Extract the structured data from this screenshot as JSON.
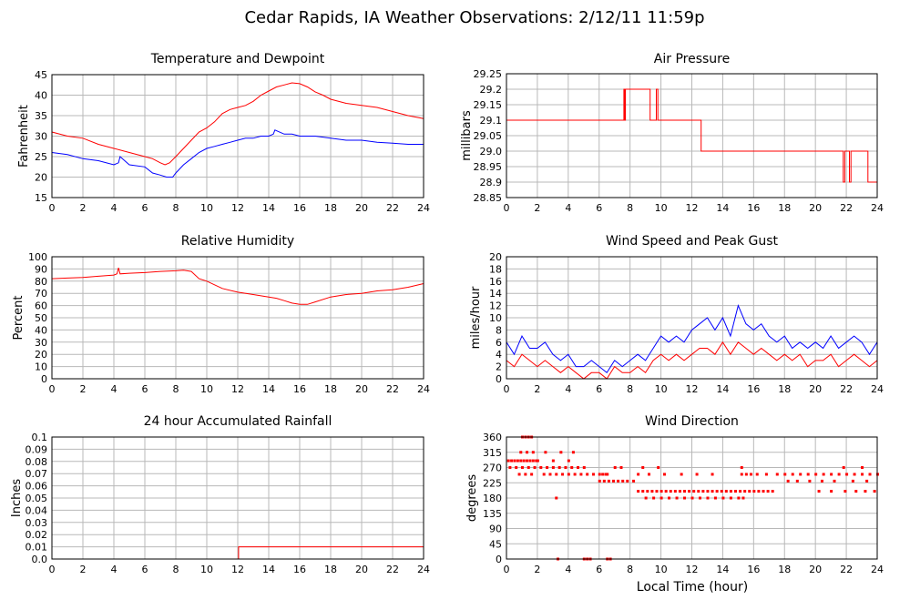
{
  "page": {
    "title": "Cedar Rapids, IA Weather Observations: 2/12/11 11:59p"
  },
  "colors": {
    "red": "#ff0000",
    "blue": "#0000ff",
    "grid": "#b8b8b8",
    "axis": "#000000"
  },
  "chart_data": [
    {
      "id": "temp",
      "type": "line",
      "title": "Temperature and Dewpoint",
      "xlabel": "",
      "ylabel": "Fahrenheit",
      "xlim": [
        0,
        24
      ],
      "ylim": [
        15,
        45
      ],
      "xticks": [
        "0",
        "2",
        "4",
        "6",
        "8",
        "10",
        "12",
        "14",
        "16",
        "18",
        "20",
        "22",
        "24"
      ],
      "yticks": [
        "15",
        "20",
        "25",
        "30",
        "35",
        "40",
        "45"
      ],
      "grid": true,
      "series": [
        {
          "color": "#ff0000",
          "x": [
            0,
            1,
            2,
            3,
            4,
            5,
            6,
            6.5,
            7,
            7.3,
            7.6,
            8,
            8.5,
            9,
            9.5,
            10,
            10.5,
            11,
            11.5,
            12,
            12.5,
            13,
            13.5,
            14,
            14.5,
            15,
            15.5,
            16,
            16.5,
            17,
            17.5,
            18,
            19,
            20,
            21,
            22,
            23,
            24
          ],
          "y": [
            31,
            30,
            29.5,
            28,
            27,
            26,
            25,
            24.5,
            23.5,
            23,
            23.5,
            25,
            27,
            29,
            31,
            32,
            33.5,
            35.5,
            36.5,
            37,
            37.5,
            38.5,
            40,
            41,
            42,
            42.5,
            43,
            42.8,
            42,
            40.8,
            40,
            39,
            38,
            37.5,
            37,
            36,
            35,
            34.3
          ]
        },
        {
          "color": "#0000ff",
          "x": [
            0,
            1,
            2,
            3,
            4,
            4.3,
            4.4,
            5,
            6,
            6.5,
            7,
            7.4,
            7.8,
            8,
            8.5,
            9,
            9.5,
            10,
            10.5,
            11,
            11.5,
            12,
            12.5,
            13,
            13.5,
            14,
            14.3,
            14.4,
            15,
            15.5,
            16,
            16.5,
            17,
            18,
            19,
            20,
            21,
            22,
            23,
            24
          ],
          "y": [
            26,
            25.5,
            24.5,
            24,
            23,
            23.5,
            25,
            23,
            22.5,
            21,
            20.5,
            20,
            20,
            21,
            23,
            24.5,
            26,
            27,
            27.5,
            28,
            28.5,
            29,
            29.5,
            29.5,
            30,
            30,
            30.5,
            31.5,
            30.5,
            30.5,
            30,
            30,
            30,
            29.5,
            29,
            29,
            28.5,
            28.3,
            28,
            28
          ]
        }
      ]
    },
    {
      "id": "pressure",
      "type": "line",
      "title": "Air Pressure",
      "xlabel": "",
      "ylabel": "millibars",
      "xlim": [
        0,
        24
      ],
      "ylim": [
        28.85,
        29.25
      ],
      "xticks": [
        "0",
        "2",
        "4",
        "6",
        "8",
        "10",
        "12",
        "14",
        "16",
        "18",
        "20",
        "22",
        "24"
      ],
      "yticks": [
        "28.85",
        "28.9",
        "28.95",
        "29.0",
        "29.05",
        "29.1",
        "29.15",
        "29.2",
        "29.25"
      ],
      "grid": true,
      "series": [
        {
          "color": "#ff0000",
          "x": [
            0,
            7.6,
            7.6,
            7.65,
            7.65,
            7.7,
            7.7,
            7.75,
            7.75,
            9.3,
            9.3,
            9.7,
            9.7,
            9.8,
            9.8,
            9.9,
            9.9,
            12.6,
            12.6,
            21.8,
            21.8,
            21.9,
            21.9,
            22.2,
            22.2,
            22.3,
            22.3,
            22.9,
            22.9,
            23.4,
            23.4,
            23.5,
            23.5,
            24
          ],
          "y": [
            29.1,
            29.1,
            29.2,
            29.2,
            29.1,
            29.1,
            29.2,
            29.2,
            29.2,
            29.2,
            29.1,
            29.1,
            29.2,
            29.2,
            29.1,
            29.1,
            29.1,
            29.1,
            29.0,
            29.0,
            28.9,
            28.9,
            29.0,
            29.0,
            28.9,
            28.9,
            29.0,
            29.0,
            29.0,
            29.0,
            28.9,
            28.9,
            28.9,
            28.9
          ]
        }
      ]
    },
    {
      "id": "humidity",
      "type": "line",
      "title": "Relative Humidity",
      "xlabel": "",
      "ylabel": "Percent",
      "xlim": [
        0,
        24
      ],
      "ylim": [
        0,
        100
      ],
      "xticks": [
        "0",
        "2",
        "4",
        "6",
        "8",
        "10",
        "12",
        "14",
        "16",
        "18",
        "20",
        "22",
        "24"
      ],
      "yticks": [
        "0",
        "10",
        "20",
        "30",
        "40",
        "50",
        "60",
        "70",
        "80",
        "90",
        "100"
      ],
      "grid": true,
      "series": [
        {
          "color": "#ff0000",
          "x": [
            0,
            1,
            2,
            3,
            4,
            4.2,
            4.3,
            4.4,
            5,
            6,
            7,
            8,
            8.5,
            9,
            9.5,
            10,
            10.5,
            11,
            12,
            13,
            14,
            14.5,
            15,
            15.5,
            16,
            16.5,
            17,
            18,
            19,
            20,
            21,
            22,
            23,
            24
          ],
          "y": [
            82,
            82.5,
            83,
            84,
            85,
            86,
            91,
            86,
            86.5,
            87,
            88,
            88.5,
            89,
            88,
            82,
            80,
            77,
            74,
            71,
            69,
            67,
            66,
            64,
            62,
            61,
            61,
            63,
            67,
            69,
            70,
            72,
            73,
            75,
            78
          ]
        }
      ]
    },
    {
      "id": "wind",
      "type": "line",
      "title": "Wind Speed and Peak Gust",
      "xlabel": "",
      "ylabel": "miles/hour",
      "xlim": [
        0,
        24
      ],
      "ylim": [
        0,
        20
      ],
      "xticks": [
        "0",
        "2",
        "4",
        "6",
        "8",
        "10",
        "12",
        "14",
        "16",
        "18",
        "20",
        "22",
        "24"
      ],
      "yticks": [
        "0",
        "2",
        "4",
        "6",
        "8",
        "10",
        "12",
        "14",
        "16",
        "18",
        "20"
      ],
      "grid": true,
      "series": [
        {
          "color": "#ff0000",
          "x": [
            0,
            0.5,
            1,
            1.5,
            2,
            2.5,
            3,
            3.5,
            4,
            4.5,
            5,
            5.5,
            6,
            6.5,
            7,
            7.5,
            8,
            8.5,
            9,
            9.5,
            10,
            10.5,
            11,
            11.5,
            12,
            12.5,
            13,
            13.5,
            14,
            14.5,
            15,
            15.5,
            16,
            16.5,
            17,
            17.5,
            18,
            18.5,
            19,
            19.5,
            20,
            20.5,
            21,
            21.5,
            22,
            22.5,
            23,
            23.5,
            24
          ],
          "y": [
            3,
            2,
            4,
            3,
            2,
            3,
            2,
            1,
            2,
            1,
            0,
            1,
            1,
            0,
            2,
            1,
            1,
            2,
            1,
            3,
            4,
            3,
            4,
            3,
            4,
            5,
            5,
            4,
            6,
            4,
            6,
            5,
            4,
            5,
            4,
            3,
            4,
            3,
            4,
            2,
            3,
            3,
            4,
            2,
            3,
            4,
            3,
            2,
            3
          ]
        },
        {
          "color": "#0000ff",
          "x": [
            0,
            0.5,
            1,
            1.5,
            2,
            2.5,
            3,
            3.5,
            4,
            4.5,
            5,
            5.5,
            6,
            6.5,
            7,
            7.5,
            8,
            8.5,
            9,
            9.5,
            10,
            10.5,
            11,
            11.5,
            12,
            12.5,
            13,
            13.5,
            14,
            14.5,
            15,
            15.5,
            16,
            16.5,
            17,
            17.5,
            18,
            18.5,
            19,
            19.5,
            20,
            20.5,
            21,
            21.5,
            22,
            22.5,
            23,
            23.5,
            24
          ],
          "y": [
            6,
            4,
            7,
            5,
            5,
            6,
            4,
            3,
            4,
            2,
            2,
            3,
            2,
            1,
            3,
            2,
            3,
            4,
            3,
            5,
            7,
            6,
            7,
            6,
            8,
            9,
            10,
            8,
            10,
            7,
            12,
            9,
            8,
            9,
            7,
            6,
            7,
            5,
            6,
            5,
            6,
            5,
            7,
            5,
            6,
            7,
            6,
            4,
            6
          ]
        }
      ]
    },
    {
      "id": "rain",
      "type": "line",
      "title": "24 hour Accumulated Rainfall",
      "xlabel": "",
      "ylabel": "Inches",
      "xlim": [
        0,
        24
      ],
      "ylim": [
        0,
        0.1
      ],
      "xticks": [
        "0",
        "2",
        "4",
        "6",
        "8",
        "10",
        "12",
        "14",
        "16",
        "18",
        "20",
        "22",
        "24"
      ],
      "yticks": [
        "0.0",
        "0.01",
        "0.02",
        "0.03",
        "0.04",
        "0.05",
        "0.06",
        "0.07",
        "0.08",
        "0.09",
        "0.1"
      ],
      "grid": true,
      "series": [
        {
          "color": "#ff0000",
          "x": [
            0,
            12.05,
            12.05,
            24
          ],
          "y": [
            0,
            0,
            0.01,
            0.01
          ]
        }
      ]
    },
    {
      "id": "direction",
      "type": "scatter",
      "title": "Wind Direction",
      "xlabel": "Local Time (hour)",
      "ylabel": "degrees",
      "xlim": [
        0,
        24
      ],
      "ylim": [
        0,
        360
      ],
      "xticks": [
        "0",
        "2",
        "4",
        "6",
        "8",
        "10",
        "12",
        "14",
        "16",
        "18",
        "20",
        "22",
        "24"
      ],
      "yticks": [
        "0",
        "45",
        "90",
        "135",
        "180",
        "225",
        "270",
        "315",
        "360"
      ],
      "grid": true,
      "series": [
        {
          "color": "#ff0000",
          "x": [
            0.1,
            0.3,
            0.5,
            0.7,
            0.9,
            1.1,
            1.3,
            1.5,
            1.7,
            1.9,
            0.2,
            0.6,
            1.0,
            1.4,
            1.8,
            2.2,
            2.6,
            3.0,
            3.4,
            3.8,
            4.2,
            4.6,
            5.0,
            0.8,
            1.2,
            1.6,
            2.4,
            2.8,
            3.2,
            3.6,
            4.0,
            4.4,
            4.8,
            5.2,
            5.6,
            6.0,
            6.4,
            2.0,
            3.0,
            4.0,
            0.9,
            1.3,
            1.7,
            2.5,
            3.5,
            4.3,
            3.2,
            1.0,
            1.2,
            1.4,
            1.6,
            3.3,
            5.0,
            5.2,
            5.4,
            6.5,
            6.7,
            6.0,
            6.3,
            6.6,
            6.9,
            7.2,
            7.5,
            7.8,
            8.2,
            8.5,
            8.8,
            9.1,
            9.4,
            9.7,
            10.0,
            10.3,
            10.6,
            10.9,
            11.2,
            11.5,
            11.8,
            12.1,
            12.4,
            12.7,
            13.0,
            13.3,
            13.6,
            13.9,
            14.2,
            14.5,
            14.8,
            15.1,
            15.4,
            15.7,
            16.0,
            16.3,
            16.6,
            16.9,
            17.2,
            9.0,
            9.5,
            10.0,
            10.5,
            11.0,
            11.5,
            12.0,
            12.5,
            13.0,
            13.5,
            14.0,
            14.5,
            15.0,
            15.3,
            6.2,
            6.5,
            8.5,
            9.2,
            10.2,
            11.3,
            12.3,
            13.3,
            15.2,
            15.5,
            15.8,
            16.2,
            16.8,
            17.5,
            18.0,
            18.5,
            19.0,
            19.5,
            20.0,
            20.5,
            21.0,
            21.5,
            22.0,
            22.5,
            23.0,
            23.5,
            24.0,
            18.2,
            18.8,
            19.6,
            20.4,
            21.2,
            22.4,
            23.3,
            20.2,
            21.0,
            21.9,
            22.6,
            23.2,
            23.8,
            15.2,
            21.8,
            23.0,
            7.0,
            7.4,
            8.8,
            9.8
          ],
          "y": [
            290,
            290,
            290,
            290,
            290,
            290,
            290,
            290,
            290,
            290,
            270,
            270,
            270,
            270,
            270,
            270,
            270,
            270,
            270,
            270,
            270,
            270,
            270,
            250,
            250,
            250,
            250,
            250,
            250,
            250,
            250,
            250,
            250,
            250,
            250,
            250,
            250,
            290,
            290,
            290,
            315,
            315,
            315,
            315,
            315,
            315,
            180,
            360,
            360,
            360,
            360,
            0,
            0,
            0,
            0,
            0,
            0,
            230,
            230,
            230,
            230,
            230,
            230,
            230,
            230,
            200,
            200,
            200,
            200,
            200,
            200,
            200,
            200,
            200,
            200,
            200,
            200,
            200,
            200,
            200,
            200,
            200,
            200,
            200,
            200,
            200,
            200,
            200,
            200,
            200,
            200,
            200,
            200,
            200,
            200,
            180,
            180,
            180,
            180,
            180,
            180,
            180,
            180,
            180,
            180,
            180,
            180,
            180,
            180,
            250,
            250,
            250,
            250,
            250,
            250,
            250,
            250,
            250,
            250,
            250,
            250,
            250,
            250,
            250,
            250,
            250,
            250,
            250,
            250,
            250,
            250,
            250,
            250,
            250,
            250,
            250,
            230,
            230,
            230,
            230,
            230,
            230,
            230,
            200,
            200,
            200,
            200,
            200,
            200,
            270,
            270,
            270,
            270,
            270,
            270,
            270
          ]
        }
      ]
    }
  ]
}
